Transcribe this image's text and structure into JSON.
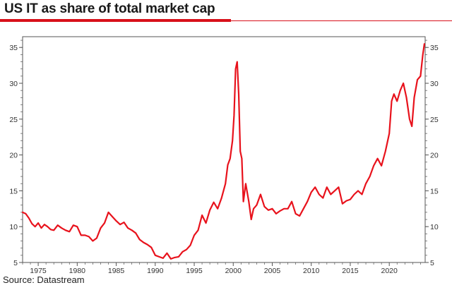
{
  "title": "US IT as share of total market cap",
  "source": "Source: Datastream",
  "colors": {
    "accent": "#d8101a",
    "line": "#e8121c",
    "axis": "#555555"
  },
  "chart_data": {
    "type": "line",
    "title": "US IT as share of total market cap",
    "xlabel": "",
    "ylabel": "",
    "xlim": [
      1973,
      2024.6
    ],
    "ylim": [
      5,
      36.5
    ],
    "x_ticks": [
      1975,
      1980,
      1985,
      1990,
      1995,
      2000,
      2005,
      2010,
      2015,
      2020
    ],
    "y_ticks": [
      5,
      10,
      15,
      20,
      25,
      30,
      35
    ],
    "y_axis_both_sides": true,
    "grid": false,
    "series": [
      {
        "name": "US IT share of total market cap (%)",
        "color": "#e8121c",
        "x": [
          1973.0,
          1973.4,
          1973.8,
          1974.2,
          1974.6,
          1975.0,
          1975.4,
          1975.8,
          1976.2,
          1976.6,
          1977.0,
          1977.5,
          1978.0,
          1978.5,
          1979.0,
          1979.5,
          1980.0,
          1980.5,
          1981.0,
          1981.5,
          1982.0,
          1982.5,
          1983.0,
          1983.5,
          1984.0,
          1984.5,
          1985.0,
          1985.5,
          1986.0,
          1986.5,
          1987.0,
          1987.5,
          1988.0,
          1988.5,
          1989.0,
          1989.5,
          1990.0,
          1990.5,
          1991.0,
          1991.5,
          1992.0,
          1992.5,
          1993.0,
          1993.5,
          1994.0,
          1994.5,
          1995.0,
          1995.5,
          1996.0,
          1996.5,
          1997.0,
          1997.5,
          1998.0,
          1998.5,
          1999.0,
          1999.3,
          1999.6,
          1999.9,
          2000.1,
          2000.3,
          2000.5,
          2000.7,
          2000.9,
          2001.1,
          2001.3,
          2001.6,
          2002.0,
          2002.3,
          2002.6,
          2003.0,
          2003.5,
          2004.0,
          2004.5,
          2005.0,
          2005.5,
          2006.0,
          2006.5,
          2007.0,
          2007.5,
          2008.0,
          2008.5,
          2009.0,
          2009.5,
          2010.0,
          2010.5,
          2011.0,
          2011.5,
          2012.0,
          2012.5,
          2013.0,
          2013.5,
          2014.0,
          2014.5,
          2015.0,
          2015.5,
          2016.0,
          2016.5,
          2017.0,
          2017.5,
          2018.0,
          2018.5,
          2019.0,
          2019.5,
          2020.0,
          2020.3,
          2020.6,
          2021.0,
          2021.4,
          2021.8,
          2022.2,
          2022.6,
          2022.9,
          2023.2,
          2023.6,
          2024.0,
          2024.3,
          2024.5
        ],
        "values": [
          12.0,
          11.8,
          11.2,
          10.4,
          10.0,
          10.5,
          9.8,
          10.3,
          10.0,
          9.6,
          9.5,
          10.2,
          9.8,
          9.5,
          9.3,
          10.2,
          10.0,
          8.8,
          8.8,
          8.6,
          8.0,
          8.4,
          9.8,
          10.5,
          12.0,
          11.4,
          10.8,
          10.3,
          10.6,
          9.8,
          9.5,
          9.1,
          8.2,
          7.8,
          7.5,
          7.1,
          6.0,
          5.8,
          5.6,
          6.3,
          5.5,
          5.7,
          5.8,
          6.5,
          6.8,
          7.4,
          8.8,
          9.5,
          11.6,
          10.5,
          12.3,
          13.4,
          12.5,
          14.0,
          16.0,
          18.6,
          19.5,
          22.0,
          25.5,
          32.0,
          33.0,
          28.5,
          20.5,
          19.5,
          13.5,
          16.0,
          13.5,
          11.0,
          12.5,
          13.0,
          14.5,
          12.8,
          12.3,
          12.5,
          11.8,
          12.2,
          12.5,
          12.5,
          13.5,
          11.8,
          11.5,
          12.5,
          13.5,
          14.8,
          15.5,
          14.5,
          14.0,
          15.5,
          14.5,
          15.0,
          15.5,
          13.2,
          13.6,
          13.8,
          14.5,
          15.0,
          14.5,
          16.0,
          17.0,
          18.5,
          19.5,
          18.5,
          20.5,
          23.0,
          27.5,
          28.5,
          27.5,
          29.0,
          30.0,
          28.0,
          25.0,
          24.0,
          28.0,
          30.5,
          31.0,
          34.0,
          35.5
        ]
      }
    ]
  }
}
